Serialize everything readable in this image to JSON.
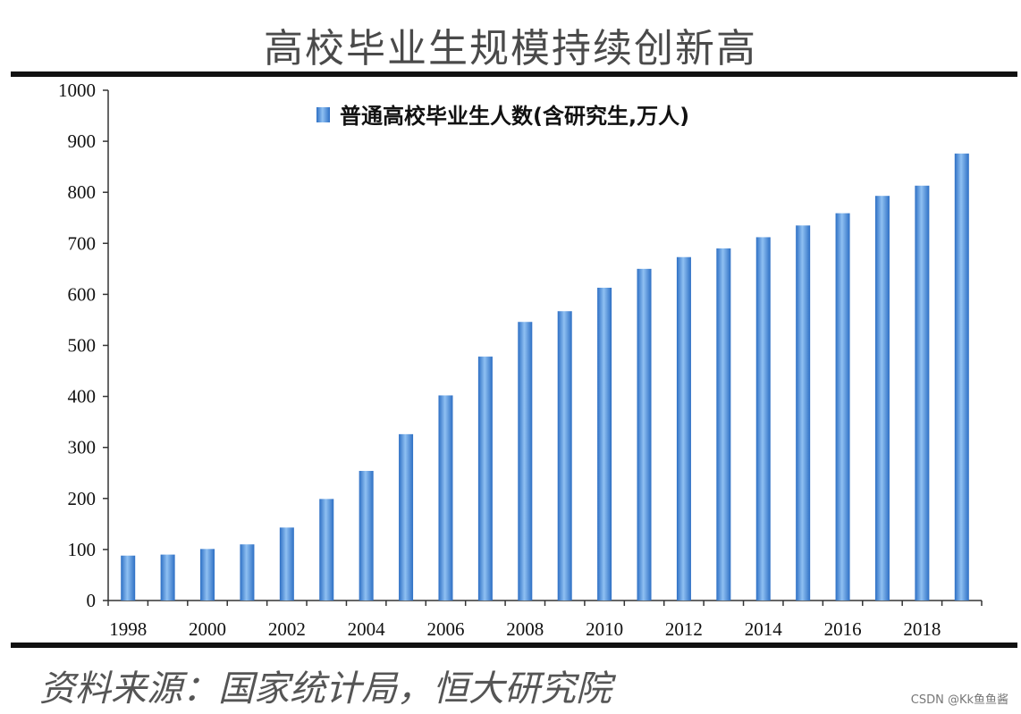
{
  "title": "高校毕业生规模持续创新高",
  "source": "资料来源：国家统计局，恒大研究院",
  "credit": "CSDN @Kk鱼鱼酱",
  "colors": {
    "bar": "#3d82d6",
    "bar_light": "#8fc0f2",
    "axis": "#333333"
  },
  "chart_data": {
    "type": "bar",
    "title": "高校毕业生规模持续创新高",
    "xlabel": "",
    "ylabel": "",
    "ylim": [
      0,
      1000
    ],
    "yticks": [
      0,
      100,
      200,
      300,
      400,
      500,
      600,
      700,
      800,
      900,
      1000
    ],
    "xtick_labels": [
      "1998",
      "2000",
      "2002",
      "2004",
      "2006",
      "2008",
      "2010",
      "2012",
      "2014",
      "2016",
      "2018"
    ],
    "categories": [
      "1998",
      "1999",
      "2000",
      "2001",
      "2002",
      "2003",
      "2004",
      "2005",
      "2006",
      "2007",
      "2008",
      "2009",
      "2010",
      "2011",
      "2012",
      "2013",
      "2014",
      "2015",
      "2016",
      "2017",
      "2018",
      "2019"
    ],
    "series": [
      {
        "name": "普通高校毕业生人数(含研究生,万人)",
        "values": [
          88,
          90,
          101,
          110,
          143,
          199,
          254,
          326,
          402,
          478,
          546,
          567,
          613,
          650,
          673,
          690,
          712,
          735,
          759,
          793,
          813,
          876
        ]
      }
    ],
    "legend_position": "top",
    "grid": false
  }
}
